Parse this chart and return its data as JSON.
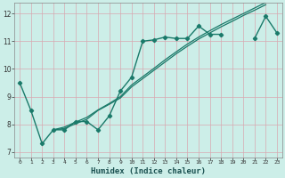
{
  "title": "",
  "xlabel": "Humidex (Indice chaleur)",
  "ylabel": "",
  "bg_color": "#cceee8",
  "grid_color": "#d8a8b0",
  "line_color": "#1a7a6a",
  "xlim": [
    -0.5,
    23.5
  ],
  "ylim": [
    6.8,
    12.4
  ],
  "yticks": [
    7,
    8,
    9,
    10,
    11,
    12
  ],
  "xticks": [
    0,
    1,
    2,
    3,
    4,
    5,
    6,
    7,
    8,
    9,
    10,
    11,
    12,
    13,
    14,
    15,
    16,
    17,
    18,
    19,
    20,
    21,
    22,
    23
  ],
  "lines": [
    {
      "x": [
        0,
        1,
        2,
        3,
        4,
        5,
        6,
        7,
        8,
        9,
        10,
        11,
        12,
        13,
        14,
        15,
        16,
        17,
        18,
        19,
        20,
        21,
        22,
        23
      ],
      "y": [
        9.5,
        8.5,
        7.3,
        7.8,
        7.8,
        8.1,
        8.1,
        7.8,
        8.3,
        9.2,
        9.7,
        11.0,
        11.05,
        11.15,
        11.1,
        11.1,
        11.55,
        11.25,
        11.25,
        null,
        null,
        11.1,
        11.9,
        11.3
      ],
      "marker": "D",
      "markersize": 2.2,
      "linewidth": 1.0
    },
    {
      "x": [
        3,
        4,
        5,
        6,
        7,
        8,
        9,
        10,
        11,
        12,
        13,
        14,
        15,
        16,
        17,
        18,
        19,
        20,
        21,
        22
      ],
      "y": [
        7.8,
        7.85,
        8.02,
        8.18,
        8.5,
        8.72,
        8.95,
        9.35,
        9.65,
        9.95,
        10.25,
        10.55,
        10.82,
        11.08,
        11.3,
        11.52,
        11.72,
        11.93,
        12.12,
        12.32
      ],
      "marker": null,
      "markersize": 0,
      "linewidth": 0.9
    },
    {
      "x": [
        3,
        4,
        5,
        6,
        7,
        8,
        9,
        10,
        11,
        12,
        13,
        14,
        15,
        16,
        17,
        18,
        19,
        20,
        21,
        22
      ],
      "y": [
        7.8,
        7.9,
        8.08,
        8.25,
        8.52,
        8.75,
        9.0,
        9.42,
        9.72,
        10.02,
        10.33,
        10.62,
        10.9,
        11.15,
        11.38,
        11.6,
        11.8,
        12.0,
        12.2,
        12.4
      ],
      "marker": null,
      "markersize": 0,
      "linewidth": 0.9
    }
  ]
}
